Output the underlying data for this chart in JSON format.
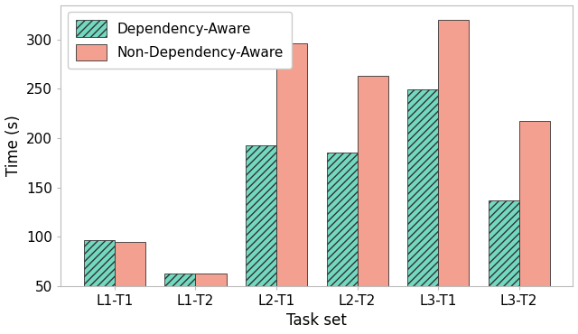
{
  "categories": [
    "L1-T1",
    "L1-T2",
    "L2-T1",
    "L2-T2",
    "L3-T1",
    "L3-T2"
  ],
  "dependency_aware": [
    97,
    63,
    193,
    185,
    249,
    137
  ],
  "non_dependency_aware": [
    95,
    63,
    296,
    263,
    320,
    217
  ],
  "dep_color": "#72D9C0",
  "non_dep_color": "#F4A090",
  "dep_hatch": "////",
  "xlabel": "Task set",
  "ylabel": "Time (s)",
  "ylim": [
    50,
    335
  ],
  "yticks": [
    50,
    100,
    150,
    200,
    250,
    300
  ],
  "legend_dep": "Dependency-Aware",
  "legend_non_dep": "Non-Dependency-Aware",
  "bar_width": 0.38,
  "figsize": [
    6.4,
    3.7
  ],
  "dpi": 100,
  "bg_color": "#ffffff"
}
